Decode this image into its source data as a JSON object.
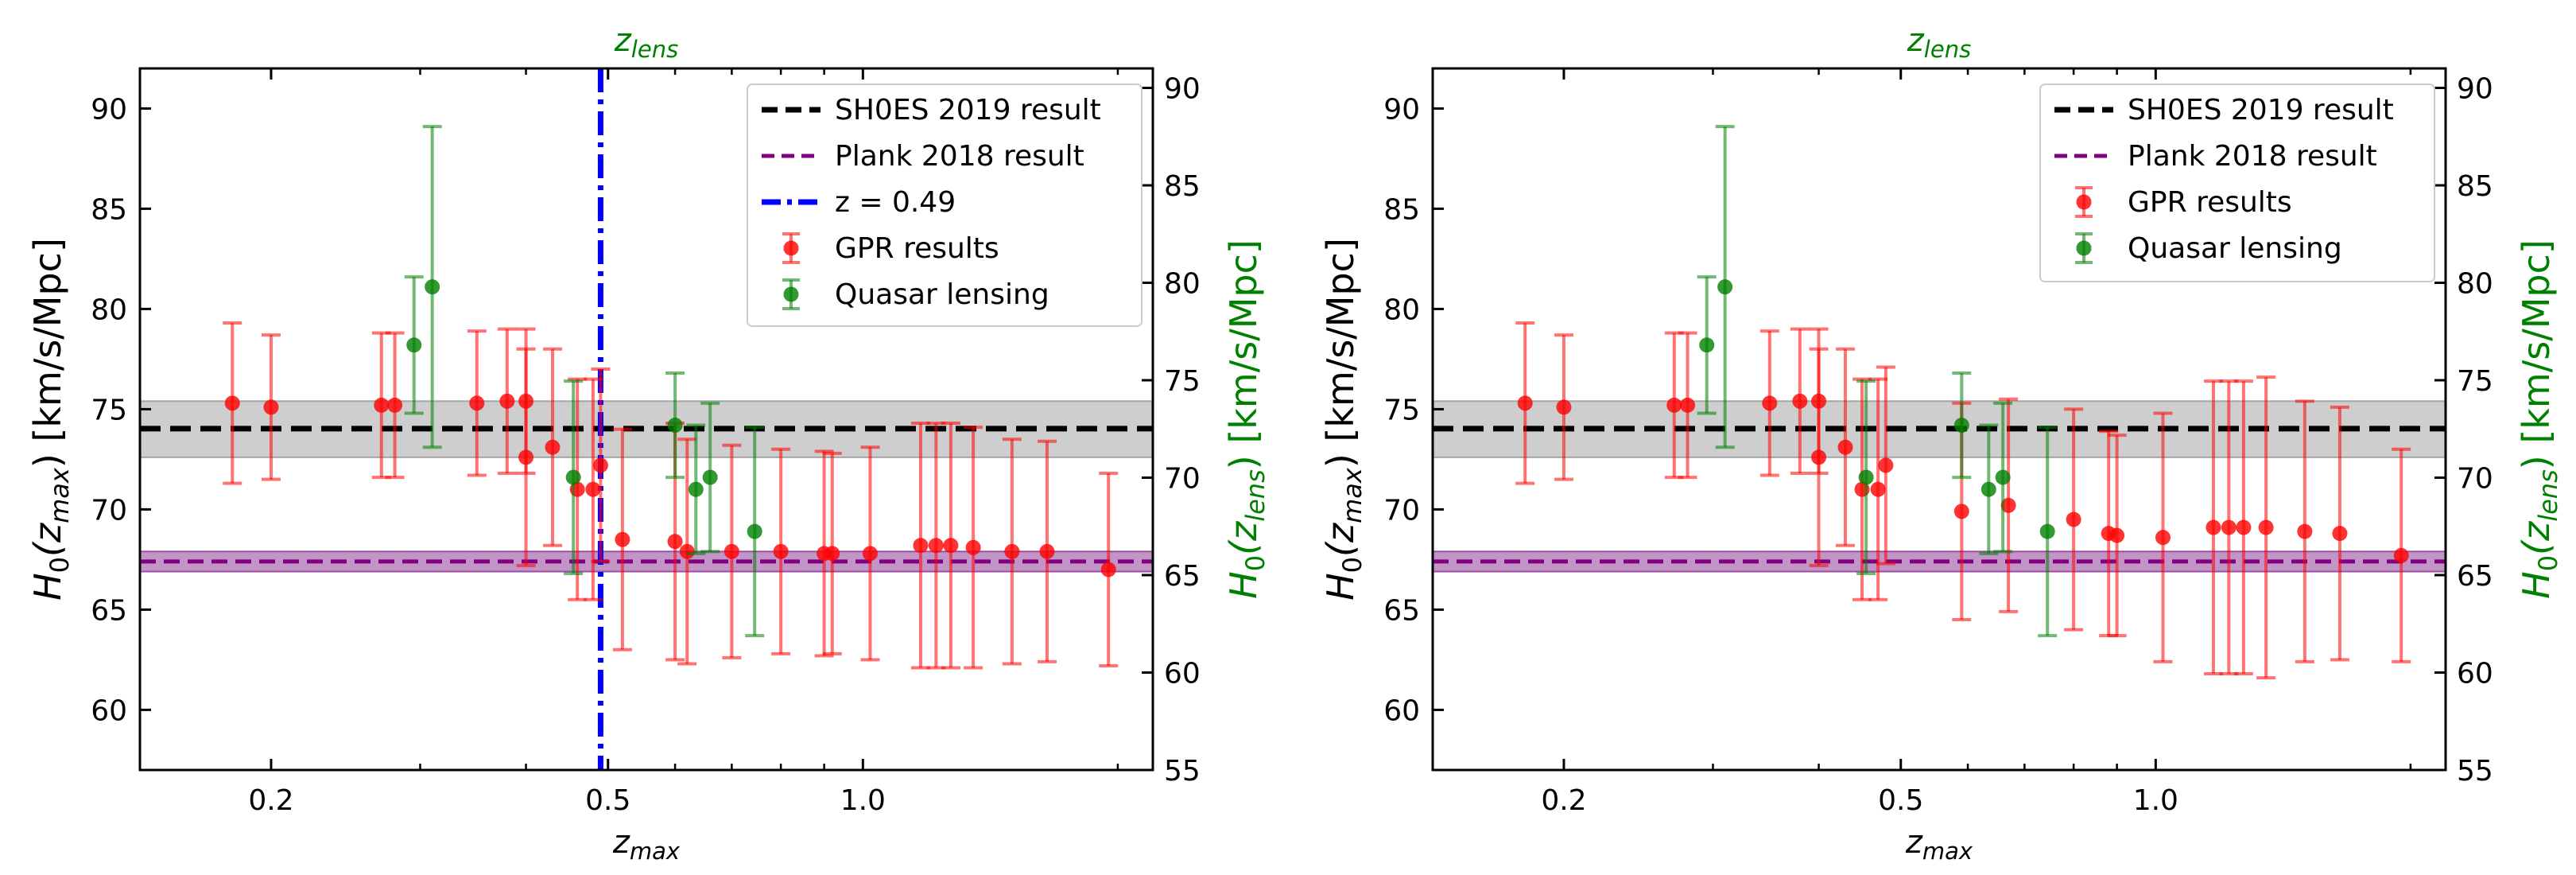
{
  "chart_data": [
    {
      "type": "scatter",
      "xscale": "log",
      "xlim": [
        0.14,
        2.2
      ],
      "ylim": [
        57,
        92
      ],
      "ylim_right": [
        55,
        91
      ],
      "xticks": [
        0.2,
        0.5,
        1.0
      ],
      "xtick_labels": [
        "0.2",
        "0.5",
        "1.0"
      ],
      "yticks": [
        60,
        65,
        70,
        75,
        80,
        85,
        90
      ],
      "yticks_right": [
        55,
        60,
        65,
        70,
        75,
        80,
        85,
        90
      ],
      "xlabel_prefix": "z",
      "xlabel_sub": "max",
      "toplabel_prefix": "z",
      "toplabel_sub": "lens",
      "ylabel_left": {
        "pre": "H",
        "sub0": "0",
        "open": "(z",
        "sub": "max",
        "post": ") [km/s/Mpc]"
      },
      "ylabel_right": {
        "pre": "H",
        "sub0": "0",
        "open": "(z",
        "sub": "lens",
        "post": ") [km/s/Mpc]"
      },
      "bands": [
        {
          "name": "SH0ES 2019 result",
          "center": 74.03,
          "low": 72.6,
          "high": 75.4,
          "color": "#000000",
          "fill": "#a6a6a6"
        },
        {
          "name": "Plank 2018 result",
          "center": 67.4,
          "low": 66.9,
          "high": 67.9,
          "color": "#800080",
          "fill": "#9b4fa0"
        }
      ],
      "vline": {
        "x": 0.49,
        "label": "z = 0.49",
        "color": "#0000ff"
      },
      "series": [
        {
          "name": "GPR results",
          "color": "#ff0000",
          "points": [
            {
              "x": 0.18,
              "y": 75.3,
              "err": 4.0
            },
            {
              "x": 0.2,
              "y": 75.1,
              "err": 3.6
            },
            {
              "x": 0.27,
              "y": 75.2,
              "err": 3.6
            },
            {
              "x": 0.28,
              "y": 75.2,
              "err": 3.6
            },
            {
              "x": 0.35,
              "y": 75.3,
              "err": 3.6
            },
            {
              "x": 0.38,
              "y": 75.4,
              "err": 3.6
            },
            {
              "x": 0.4,
              "y": 75.4,
              "err": 3.6
            },
            {
              "x": 0.4,
              "y": 72.6,
              "err": 5.4
            },
            {
              "x": 0.43,
              "y": 73.1,
              "err": 4.9
            },
            {
              "x": 0.46,
              "y": 71.0,
              "err": 5.5
            },
            {
              "x": 0.48,
              "y": 71.0,
              "err": 5.5
            },
            {
              "x": 0.49,
              "y": 72.2,
              "err": 4.8
            },
            {
              "x": 0.52,
              "y": 68.5,
              "err": 5.5
            },
            {
              "x": 0.6,
              "y": 68.4,
              "err": 5.9
            },
            {
              "x": 0.62,
              "y": 67.9,
              "err": 5.6
            },
            {
              "x": 0.7,
              "y": 67.9,
              "err": 5.3
            },
            {
              "x": 0.8,
              "y": 67.9,
              "err": 5.1
            },
            {
              "x": 0.9,
              "y": 67.8,
              "err": 5.1
            },
            {
              "x": 0.92,
              "y": 67.8,
              "err": 5.0
            },
            {
              "x": 1.02,
              "y": 67.8,
              "err": 5.3
            },
            {
              "x": 1.17,
              "y": 68.2,
              "err": 6.1
            },
            {
              "x": 1.22,
              "y": 68.2,
              "err": 6.1
            },
            {
              "x": 1.27,
              "y": 68.2,
              "err": 6.1
            },
            {
              "x": 1.35,
              "y": 68.1,
              "err": 6.0
            },
            {
              "x": 1.5,
              "y": 67.9,
              "err": 5.6
            },
            {
              "x": 1.65,
              "y": 67.9,
              "err": 5.5
            },
            {
              "x": 1.95,
              "y": 67.0,
              "err": 4.8
            }
          ]
        },
        {
          "name": "Quasar lensing",
          "color": "#008000",
          "points": [
            {
              "x": 0.295,
              "y": 78.2,
              "err": 3.4
            },
            {
              "x": 0.31,
              "y": 81.1,
              "err": 8.0
            },
            {
              "x": 0.455,
              "y": 71.6,
              "err": 4.8
            },
            {
              "x": 0.6,
              "y": 74.2,
              "err": 2.6
            },
            {
              "x": 0.635,
              "y": 71.0,
              "err": 3.2
            },
            {
              "x": 0.66,
              "y": 71.6,
              "err": 3.7
            },
            {
              "x": 0.745,
              "y": 68.9,
              "err": 5.2
            }
          ]
        }
      ],
      "legend": [
        "SH0ES 2019 result",
        "Plank 2018 result",
        "z = 0.49",
        "GPR results",
        "Quasar lensing"
      ],
      "legend_position": "top-right"
    },
    {
      "type": "scatter",
      "xscale": "log",
      "xlim": [
        0.14,
        2.2
      ],
      "ylim": [
        57,
        92
      ],
      "ylim_right": [
        55,
        91
      ],
      "xticks": [
        0.2,
        0.5,
        1.0
      ],
      "xtick_labels": [
        "0.2",
        "0.5",
        "1.0"
      ],
      "yticks": [
        60,
        65,
        70,
        75,
        80,
        85,
        90
      ],
      "yticks_right": [
        55,
        60,
        65,
        70,
        75,
        80,
        85,
        90
      ],
      "xlabel_prefix": "z",
      "xlabel_sub": "max",
      "toplabel_prefix": "z",
      "toplabel_sub": "lens",
      "ylabel_left": {
        "pre": "H",
        "sub0": "0",
        "open": "(z",
        "sub": "max",
        "post": ") [km/s/Mpc]"
      },
      "ylabel_right": {
        "pre": "H",
        "sub0": "0",
        "open": "(z",
        "sub": "lens",
        "post": ") [km/s/Mpc]"
      },
      "bands": [
        {
          "name": "SH0ES 2019 result",
          "center": 74.03,
          "low": 72.6,
          "high": 75.4,
          "color": "#000000",
          "fill": "#a6a6a6"
        },
        {
          "name": "Plank 2018 result",
          "center": 67.4,
          "low": 66.9,
          "high": 67.9,
          "color": "#800080",
          "fill": "#9b4fa0"
        }
      ],
      "series": [
        {
          "name": "GPR results",
          "color": "#ff0000",
          "points": [
            {
              "x": 0.18,
              "y": 75.3,
              "err": 4.0
            },
            {
              "x": 0.2,
              "y": 75.1,
              "err": 3.6
            },
            {
              "x": 0.27,
              "y": 75.2,
              "err": 3.6
            },
            {
              "x": 0.28,
              "y": 75.2,
              "err": 3.6
            },
            {
              "x": 0.35,
              "y": 75.3,
              "err": 3.6
            },
            {
              "x": 0.38,
              "y": 75.4,
              "err": 3.6
            },
            {
              "x": 0.4,
              "y": 75.4,
              "err": 3.6
            },
            {
              "x": 0.4,
              "y": 72.6,
              "err": 5.4
            },
            {
              "x": 0.43,
              "y": 73.1,
              "err": 4.9
            },
            {
              "x": 0.45,
              "y": 71.0,
              "err": 5.5
            },
            {
              "x": 0.47,
              "y": 71.0,
              "err": 5.5
            },
            {
              "x": 0.48,
              "y": 72.2,
              "err": 4.9
            },
            {
              "x": 0.59,
              "y": 69.9,
              "err": 5.4
            },
            {
              "x": 0.67,
              "y": 70.2,
              "err": 5.3
            },
            {
              "x": 0.8,
              "y": 69.5,
              "err": 5.5
            },
            {
              "x": 0.88,
              "y": 68.8,
              "err": 5.1
            },
            {
              "x": 0.9,
              "y": 68.7,
              "err": 5.0
            },
            {
              "x": 1.02,
              "y": 68.6,
              "err": 6.2
            },
            {
              "x": 1.17,
              "y": 69.1,
              "err": 7.3
            },
            {
              "x": 1.22,
              "y": 69.1,
              "err": 7.3
            },
            {
              "x": 1.27,
              "y": 69.1,
              "err": 7.3
            },
            {
              "x": 1.35,
              "y": 69.1,
              "err": 7.5
            },
            {
              "x": 1.5,
              "y": 68.9,
              "err": 6.5
            },
            {
              "x": 1.65,
              "y": 68.8,
              "err": 6.3
            },
            {
              "x": 1.95,
              "y": 67.7,
              "err": 5.3
            }
          ]
        },
        {
          "name": "Quasar lensing",
          "color": "#008000",
          "points": [
            {
              "x": 0.295,
              "y": 78.2,
              "err": 3.4
            },
            {
              "x": 0.31,
              "y": 81.1,
              "err": 8.0
            },
            {
              "x": 0.455,
              "y": 71.6,
              "err": 4.8
            },
            {
              "x": 0.59,
              "y": 74.2,
              "err": 2.6
            },
            {
              "x": 0.635,
              "y": 71.0,
              "err": 3.2
            },
            {
              "x": 0.66,
              "y": 71.6,
              "err": 3.7
            },
            {
              "x": 0.745,
              "y": 68.9,
              "err": 5.2
            }
          ]
        }
      ],
      "legend": [
        "SH0ES 2019 result",
        "Plank 2018 result",
        "GPR results",
        "Quasar lensing"
      ],
      "legend_position": "top-right"
    }
  ]
}
